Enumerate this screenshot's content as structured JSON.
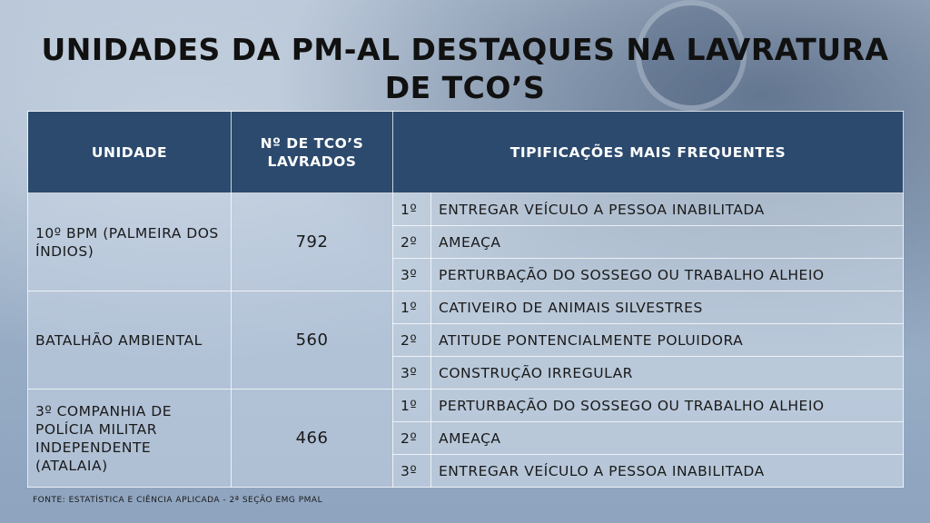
{
  "title": {
    "line1": "UNIDADES DA PM-AL DESTAQUES NA LAVRATURA",
    "line2": "DE TCO’S"
  },
  "table": {
    "headers": {
      "unit": "UNIDADE",
      "count": "Nº DE TCO’S LAVRADOS",
      "types": "TIPIFICAÇÕES MAIS FREQUENTES"
    },
    "rows": [
      {
        "unit": "10º BPM (PALMEIRA DOS ÍNDIOS)",
        "count": "792",
        "types": [
          {
            "rank": "1º",
            "label": "ENTREGAR VEÍCULO A PESSOA INABILITADA"
          },
          {
            "rank": "2º",
            "label": "AMEAÇA"
          },
          {
            "rank": "3º",
            "label": "PERTURBAÇÃO DO SOSSEGO OU TRABALHO ALHEIO"
          }
        ]
      },
      {
        "unit": "BATALHÃO AMBIENTAL",
        "count": "560",
        "types": [
          {
            "rank": "1º",
            "label": "CATIVEIRO DE ANIMAIS SILVESTRES"
          },
          {
            "rank": "2º",
            "label": "ATITUDE PONTENCIALMENTE POLUIDORA"
          },
          {
            "rank": "3º",
            "label": "CONSTRUÇÃO IRREGULAR"
          }
        ]
      },
      {
        "unit": "3º COMPANHIA DE POLÍCIA MILITAR INDEPENDENTE (ATALAIA)",
        "count": "466",
        "types": [
          {
            "rank": "1º",
            "label": "PERTURBAÇÃO DO SOSSEGO OU TRABALHO ALHEIO"
          },
          {
            "rank": "2º",
            "label": "AMEAÇA"
          },
          {
            "rank": "3º",
            "label": "ENTREGAR VEÍCULO A PESSOA INABILITADA"
          }
        ]
      }
    ]
  },
  "source": "FONTE: ESTATÍSTICA E CIÊNCIA APLICADA - 2ª SEÇÃO EMG PMAL"
}
